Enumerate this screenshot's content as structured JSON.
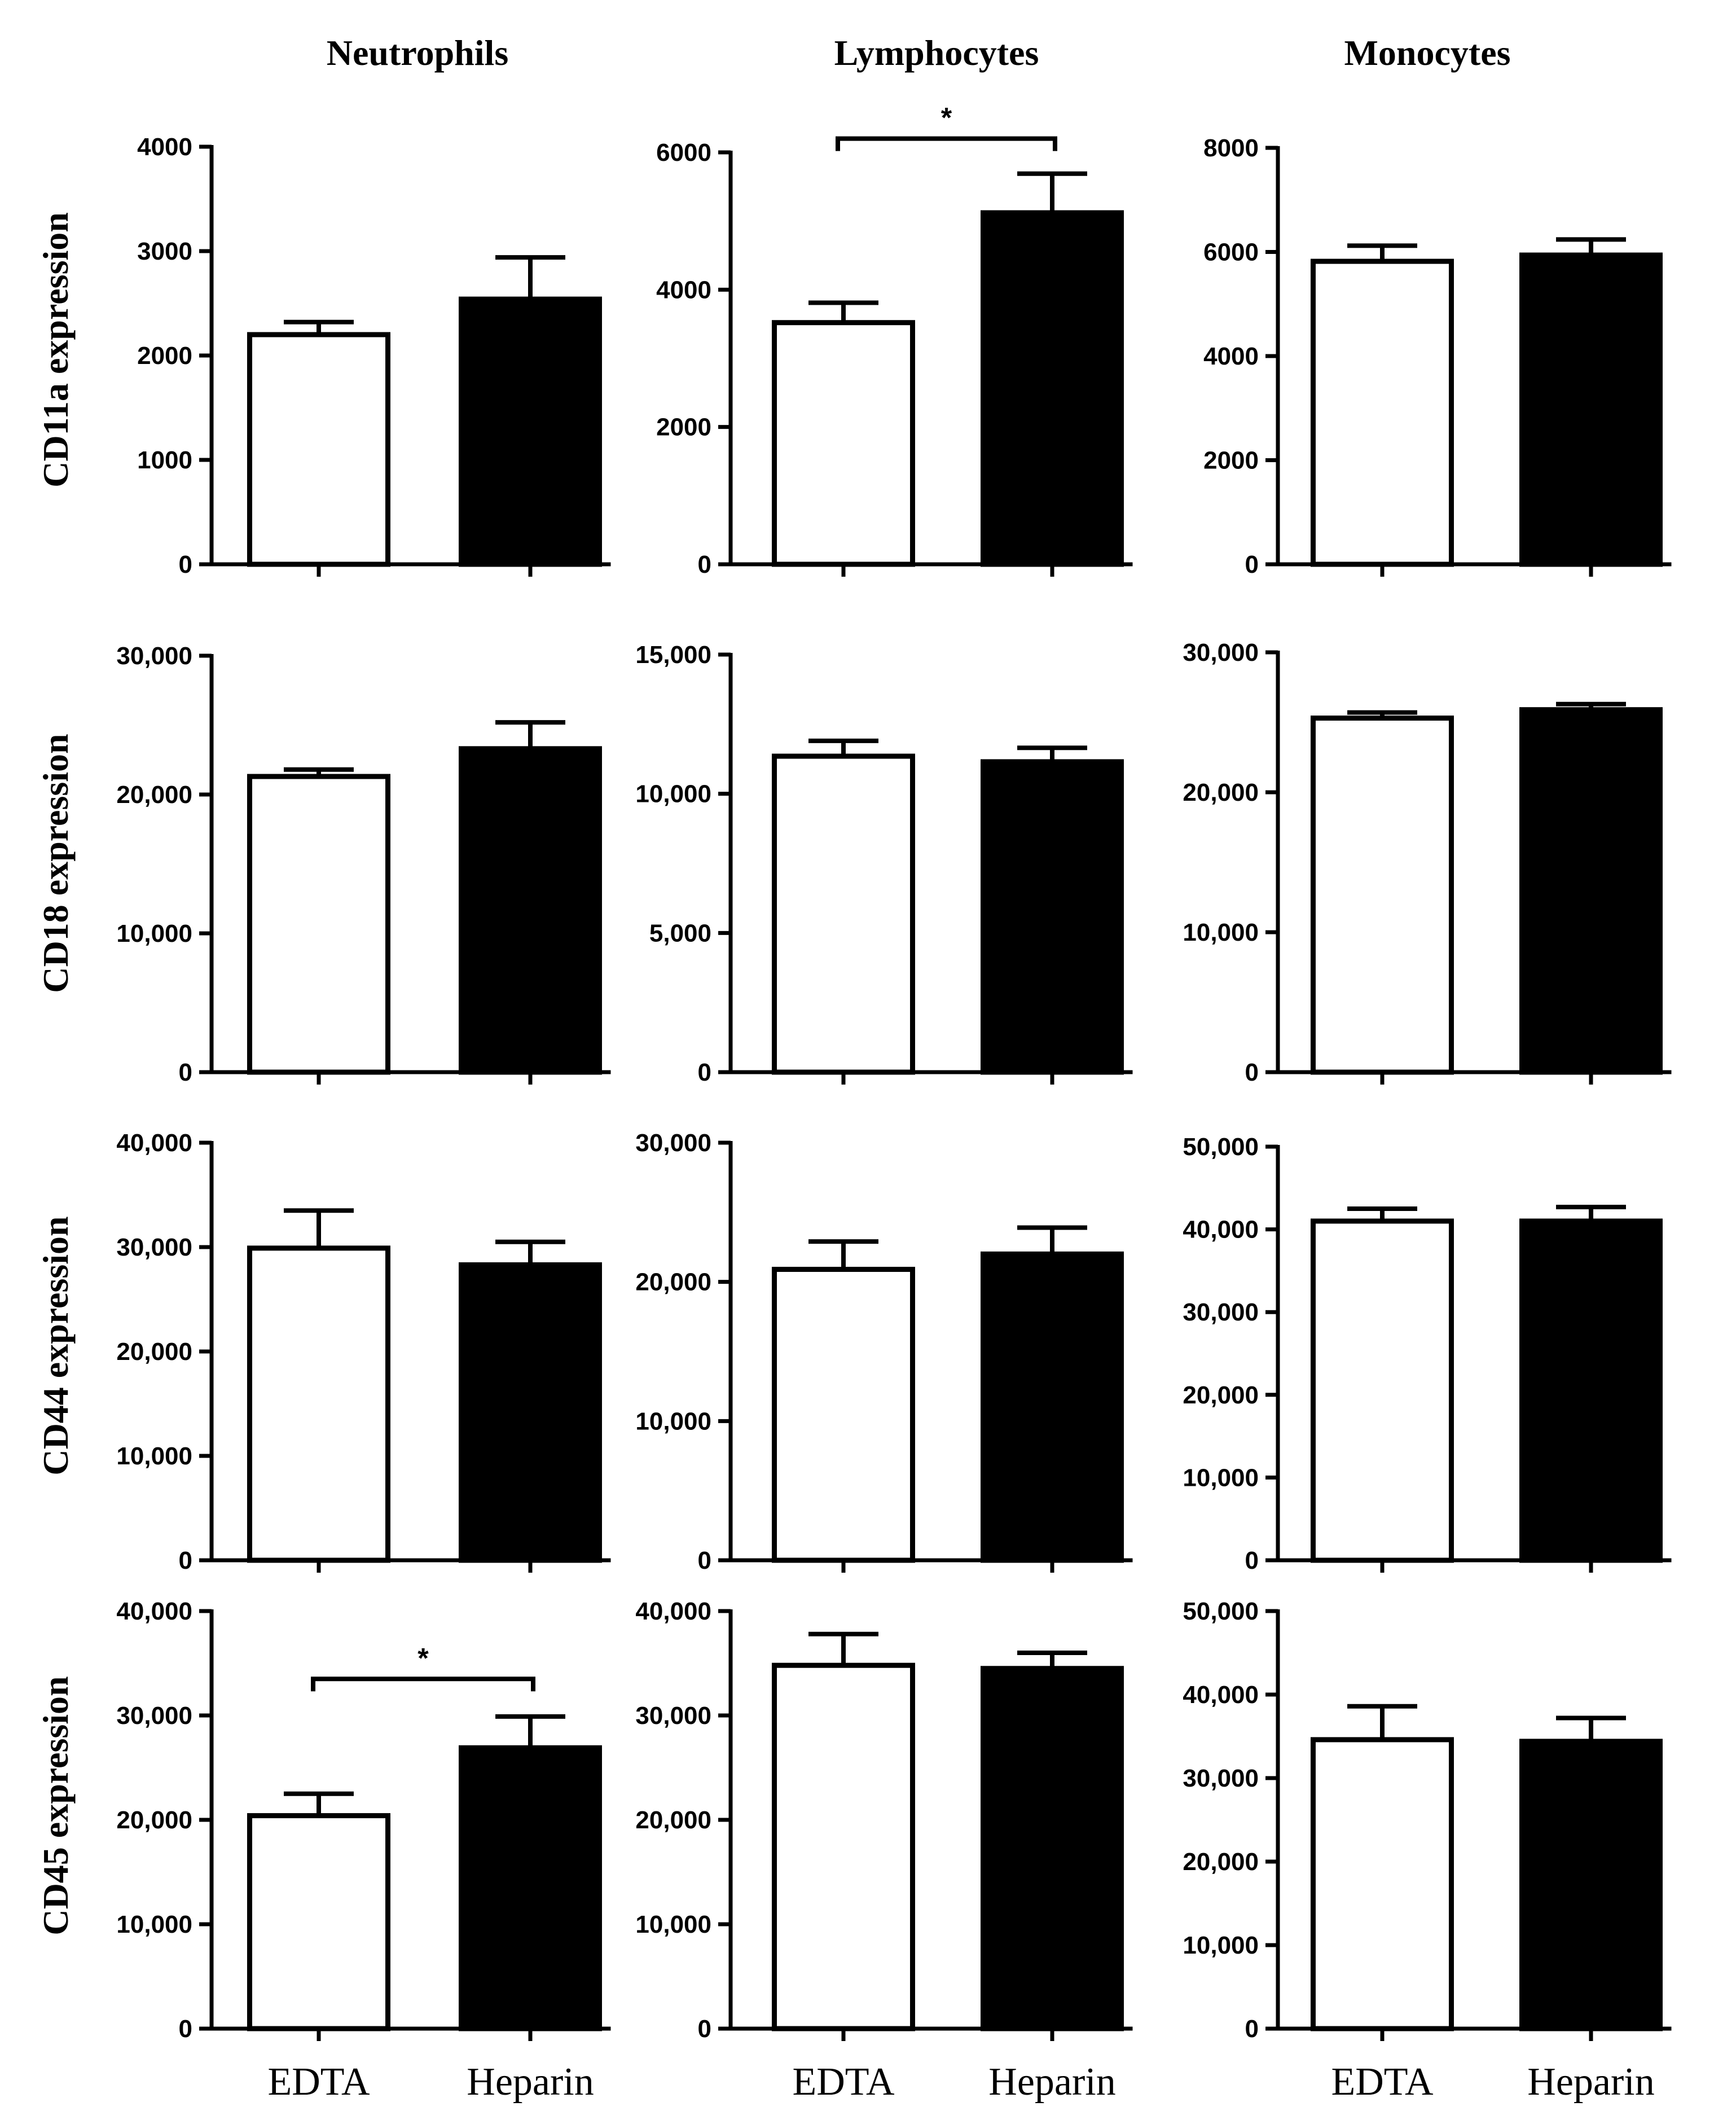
{
  "columns": [
    "Neutrophils",
    "Lymphocytes",
    "Monocytes"
  ],
  "rows": [
    "CD11a expression",
    "CD18 expression",
    "CD44 expression",
    "CD45 expression"
  ],
  "categories": [
    "EDTA",
    "Heparin"
  ],
  "colors": {
    "EDTA": "#ffffff",
    "Heparin": "#000000"
  },
  "chart_data": [
    {
      "type": "bar",
      "title": "Neutrophils",
      "ylabel": "CD11a expression",
      "categories": [
        "EDTA",
        "Heparin"
      ],
      "values": [
        2200,
        2540
      ],
      "errors": [
        120,
        400
      ],
      "ylim": [
        0,
        4000
      ],
      "yticks": [
        "0",
        "1000",
        "2000",
        "3000",
        "4000"
      ],
      "significance": null
    },
    {
      "type": "bar",
      "title": "Lymphocytes",
      "ylabel": "CD11a expression",
      "categories": [
        "EDTA",
        "Heparin"
      ],
      "values": [
        3520,
        5120
      ],
      "errors": [
        290,
        570
      ],
      "ylim": [
        0,
        6000
      ],
      "yticks": [
        "0",
        "2000",
        "4000",
        "6000"
      ],
      "significance": {
        "label": "*",
        "y": 6200
      }
    },
    {
      "type": "bar",
      "title": "Monocytes",
      "ylabel": "CD11a expression",
      "categories": [
        "EDTA",
        "Heparin"
      ],
      "values": [
        5820,
        5940
      ],
      "errors": [
        300,
        300
      ],
      "ylim": [
        0,
        8000
      ],
      "yticks": [
        "0",
        "2000",
        "4000",
        "6000",
        "8000"
      ],
      "significance": null
    },
    {
      "type": "bar",
      "title": "Neutrophils",
      "ylabel": "CD18 expression",
      "categories": [
        "EDTA",
        "Heparin"
      ],
      "values": [
        21300,
        23300
      ],
      "errors": [
        500,
        1900
      ],
      "ylim": [
        0,
        30000
      ],
      "yticks": [
        "0",
        "10,000",
        "20,000",
        "30,000"
      ],
      "significance": null
    },
    {
      "type": "bar",
      "title": "Lymphocytes",
      "ylabel": "CD18 expression",
      "categories": [
        "EDTA",
        "Heparin"
      ],
      "values": [
        11350,
        11150
      ],
      "errors": [
        550,
        500
      ],
      "ylim": [
        0,
        15000
      ],
      "yticks": [
        "0",
        "5,000",
        "10,000",
        "15,000"
      ],
      "significance": null
    },
    {
      "type": "bar",
      "title": "Monocytes",
      "ylabel": "CD18 expression",
      "categories": [
        "EDTA",
        "Heparin"
      ],
      "values": [
        25300,
        25900
      ],
      "errors": [
        400,
        400
      ],
      "ylim": [
        0,
        30000
      ],
      "yticks": [
        "0",
        "10,000",
        "20,000",
        "30,000"
      ],
      "significance": null
    },
    {
      "type": "bar",
      "title": "Neutrophils",
      "ylabel": "CD44 expression",
      "categories": [
        "EDTA",
        "Heparin"
      ],
      "values": [
        29900,
        28300
      ],
      "errors": [
        3600,
        2200
      ],
      "ylim": [
        0,
        40000
      ],
      "yticks": [
        "0",
        "10,000",
        "20,000",
        "30,000",
        "40,000"
      ],
      "significance": null
    },
    {
      "type": "bar",
      "title": "Lymphocytes",
      "ylabel": "CD44 expression",
      "categories": [
        "EDTA",
        "Heparin"
      ],
      "values": [
        20900,
        22000
      ],
      "errors": [
        2000,
        1900
      ],
      "ylim": [
        0,
        30000
      ],
      "yticks": [
        "0",
        "10,000",
        "20,000",
        "30,000"
      ],
      "significance": null
    },
    {
      "type": "bar",
      "title": "Monocytes",
      "ylabel": "CD44 expression",
      "categories": [
        "EDTA",
        "Heparin"
      ],
      "values": [
        41000,
        41000
      ],
      "errors": [
        1500,
        1700
      ],
      "ylim": [
        0,
        50000
      ],
      "yticks": [
        "0",
        "10,000",
        "20,000",
        "30,000",
        "40,000",
        "50,000"
      ],
      "significance": null
    },
    {
      "type": "bar",
      "title": "Neutrophils",
      "ylabel": "CD45 expression",
      "categories": [
        "EDTA",
        "Heparin"
      ],
      "values": [
        20400,
        26900
      ],
      "errors": [
        2100,
        3000
      ],
      "ylim": [
        0,
        40000
      ],
      "yticks": [
        "0",
        "10,000",
        "20,000",
        "30,000",
        "40,000"
      ],
      "significance": {
        "label": "*",
        "y": 33500
      }
    },
    {
      "type": "bar",
      "title": "Lymphocytes",
      "ylabel": "CD45 expression",
      "categories": [
        "EDTA",
        "Heparin"
      ],
      "values": [
        34800,
        34500
      ],
      "errors": [
        3000,
        1500
      ],
      "ylim": [
        0,
        40000
      ],
      "yticks": [
        "0",
        "10,000",
        "20,000",
        "30,000",
        "40,000"
      ],
      "significance": null
    },
    {
      "type": "bar",
      "title": "Monocytes",
      "ylabel": "CD45 expression",
      "categories": [
        "EDTA",
        "Heparin"
      ],
      "values": [
        34600,
        34400
      ],
      "errors": [
        4000,
        2800
      ],
      "ylim": [
        0,
        50000
      ],
      "yticks": [
        "0",
        "10,000",
        "20,000",
        "30,000",
        "40,000",
        "50,000"
      ],
      "significance": null
    }
  ]
}
